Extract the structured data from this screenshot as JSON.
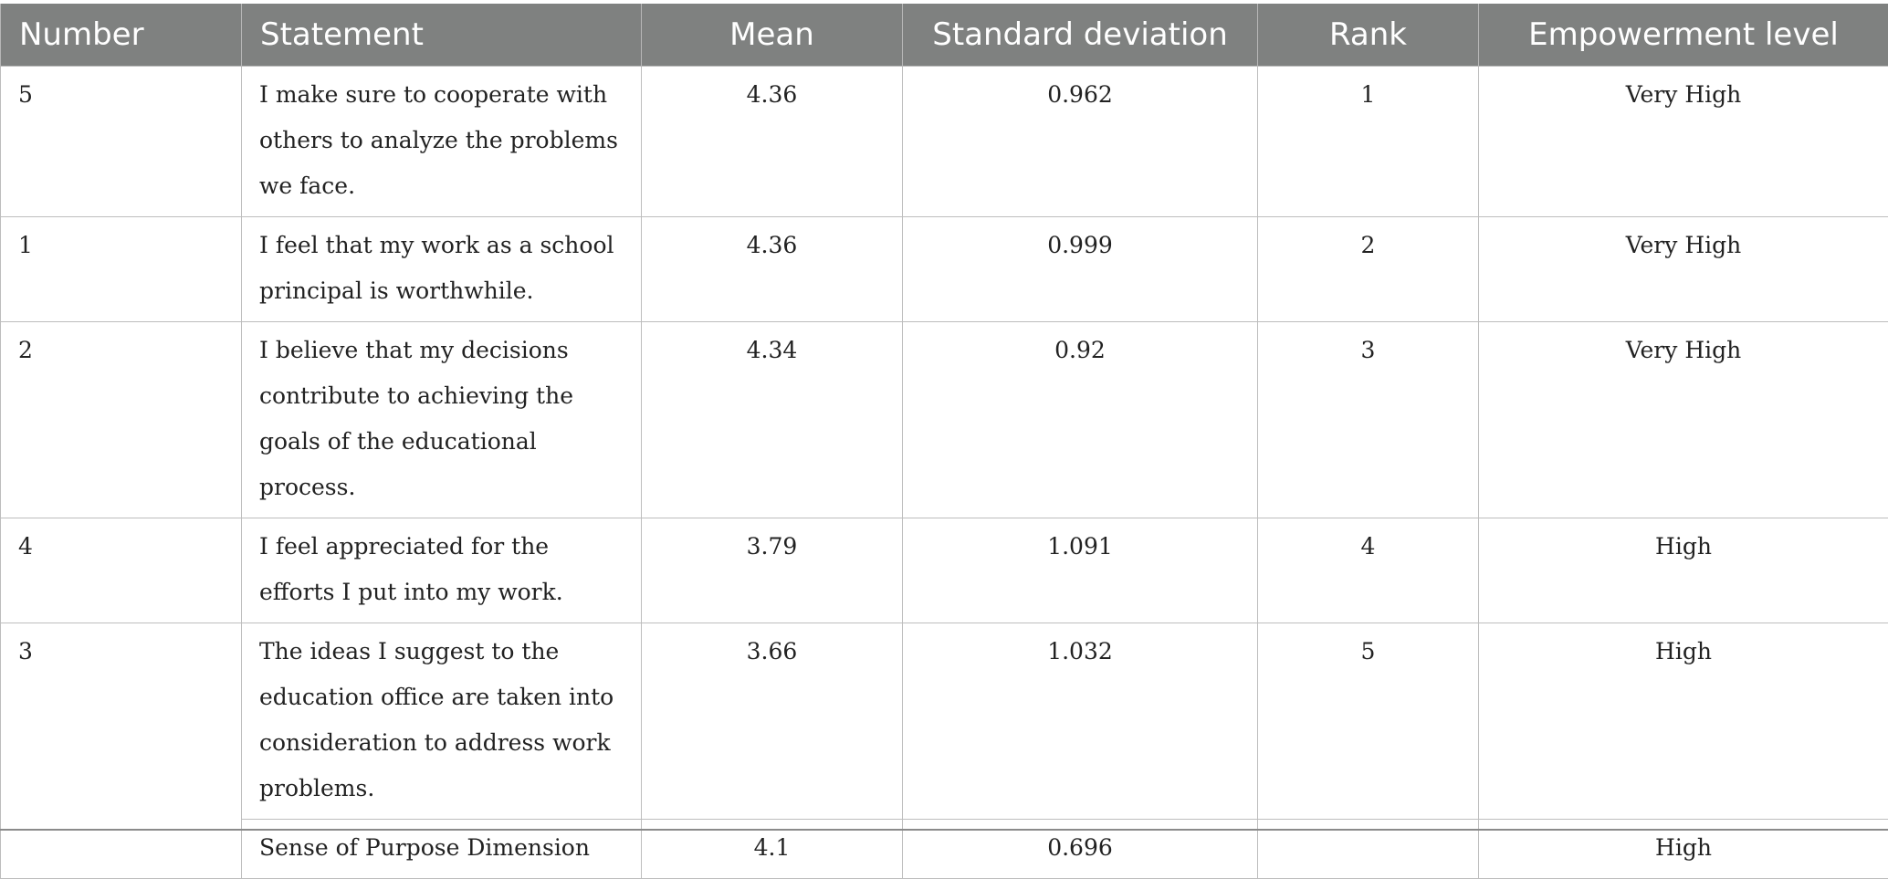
{
  "table": {
    "headers": [
      "Number",
      "Statement",
      "Mean",
      "Standard deviation",
      "Rank",
      "Empowerment level"
    ],
    "rows": [
      {
        "number": "5",
        "statement": "I make sure to cooperate with others to analyze the problems we face.",
        "mean": "4.36",
        "sd": "0.962",
        "rank": "1",
        "level": "Very High"
      },
      {
        "number": "1",
        "statement": "I feel that my work as a school principal is worthwhile.",
        "mean": "4.36",
        "sd": "0.999",
        "rank": "2",
        "level": "Very High"
      },
      {
        "number": "2",
        "statement": "I believe that my decisions contribute to achieving the goals of the educational process.",
        "mean": "4.34",
        "sd": "0.92",
        "rank": "3",
        "level": "Very High"
      },
      {
        "number": "4",
        "statement": "I feel appreciated for the efforts I put into my work.",
        "mean": "3.79",
        "sd": "1.091",
        "rank": "4",
        "level": "High"
      },
      {
        "number": "3",
        "statement": "The ideas I suggest to the education office are taken into consideration to address work problems.",
        "mean": "3.66",
        "sd": "1.032",
        "rank": "5",
        "level": "High"
      }
    ],
    "summary": {
      "statement": "Sense of Purpose Dimension",
      "mean": "4.1",
      "sd": "0.696",
      "rank": "",
      "level": "High"
    }
  },
  "colors": {
    "header_bg": "#7f8180",
    "header_text": "#ffffff",
    "border": "#bdbdbd",
    "text": "#222222"
  }
}
